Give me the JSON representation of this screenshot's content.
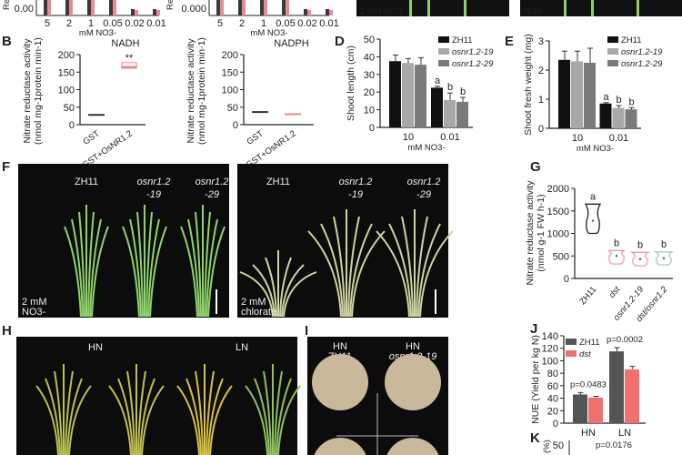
{
  "panel_labels": [
    "B",
    "D",
    "E",
    "F",
    "G",
    "H",
    "I",
    "J",
    "K"
  ],
  "top_photos": {
    "left_caption": "2 mM NO3-",
    "right_caption": "NO3-"
  },
  "chart_data": [
    {
      "id": "A-left",
      "type": "bar",
      "partial": true,
      "ylabel": "Relative",
      "yticks": [
        "0.00"
      ],
      "categories": [
        "5",
        "2",
        "1",
        "0.05",
        "0.02",
        "0.01"
      ],
      "xlabel": "mM NO3-",
      "colors": [
        "#3a3a3a",
        "#e88a93"
      ]
    },
    {
      "id": "A-right",
      "type": "bar",
      "partial": true,
      "ylabel": "Relative",
      "yticks": [
        "0.000"
      ],
      "categories": [
        "5",
        "2",
        "1",
        "0.05",
        "0.02",
        "0.01"
      ],
      "xlabel": "mM NO3-",
      "colors": [
        "#3a3a3a",
        "#e88a93"
      ]
    },
    {
      "id": "B-NADH",
      "type": "box",
      "title": "NADH",
      "ylabel": "Nitrate reductase activity",
      "ylabel2": "(nmol mg-1protein min-1)",
      "ylim": [
        0,
        200
      ],
      "yticks": [
        "0",
        "50",
        "100",
        "150",
        "200"
      ],
      "categories": [
        "GST",
        "GST+OsNR1.2"
      ],
      "values": [
        28,
        165
      ],
      "colors": [
        "#333333",
        "#e88a93"
      ],
      "annotation": "**"
    },
    {
      "id": "B-NADPH",
      "type": "box",
      "title": "NADPH",
      "ylabel": "Nitrate reductase activity",
      "ylabel2": "(nmol mg-1protein min-1)",
      "ylim": [
        0,
        200
      ],
      "yticks": [
        "0",
        "50",
        "100",
        "150",
        "200"
      ],
      "categories": [
        "GST",
        "GST+OsNR1.2"
      ],
      "values": [
        36,
        30
      ],
      "colors": [
        "#333333",
        "#e88a93"
      ]
    },
    {
      "id": "D",
      "type": "bar",
      "ylabel": "Shoot length (cm)",
      "xlabel": "mM NO3-",
      "ylim": [
        0,
        50
      ],
      "yticks": [
        "0",
        "10",
        "20",
        "30",
        "40",
        "50"
      ],
      "categories": [
        "10",
        "0.01"
      ],
      "series": [
        {
          "name": "ZH11",
          "values": [
            37.5,
            22.5
          ],
          "err": [
            3.5,
            0.8
          ],
          "color": "#111111"
        },
        {
          "name": "osnr1.2-19",
          "values": [
            36.5,
            15.5
          ],
          "err": [
            2.5,
            4
          ],
          "color": "#a8a8a8"
        },
        {
          "name": "osnr1.2-29",
          "values": [
            35.5,
            14.5
          ],
          "err": [
            4,
            2.5
          ],
          "color": "#7a7a7a"
        }
      ],
      "letters": [
        [
          "",
          ""
        ],
        [
          "a",
          "b"
        ],
        [
          "b"
        ]
      ],
      "group_letters": [
        "a",
        "b",
        "b"
      ]
    },
    {
      "id": "E",
      "type": "bar",
      "ylabel": "Shoot fresh weight (mg)",
      "xlabel": "mM NO3-",
      "ylim": [
        0,
        3
      ],
      "yticks": [
        "0",
        "1",
        "2",
        "3"
      ],
      "categories": [
        "10",
        "0.01"
      ],
      "series": [
        {
          "name": "ZH11",
          "values": [
            2.35,
            0.85
          ],
          "err": [
            0.3,
            0.03
          ],
          "color": "#111111"
        },
        {
          "name": "osnr1.2-19",
          "values": [
            2.3,
            0.7
          ],
          "err": [
            0.35,
            0.08
          ],
          "color": "#a8a8a8"
        },
        {
          "name": "osnr1.2-29",
          "values": [
            2.25,
            0.65
          ],
          "err": [
            0.5,
            0.06
          ],
          "color": "#7a7a7a"
        }
      ],
      "group_letters": [
        "a",
        "b",
        "b"
      ]
    },
    {
      "id": "G",
      "type": "violin",
      "ylabel": "Nitrate reductase activity",
      "ylabel2": "(nmol g-1 FW h-1)",
      "ylim": [
        0,
        2000
      ],
      "yticks": [
        "0",
        "500",
        "1000",
        "1500",
        "2000"
      ],
      "categories": [
        "ZH11",
        "dst",
        "osnr1.2-19",
        "dst/osnr1.2"
      ],
      "median": [
        1280,
        500,
        430,
        450
      ],
      "min": [
        1000,
        320,
        280,
        300
      ],
      "max": [
        1650,
        620,
        580,
        590
      ],
      "letters": [
        "a",
        "b",
        "b",
        "b"
      ],
      "colors": [
        "#222222",
        "#e8a0b0",
        "#e8a0b0",
        "#a8c8cc"
      ]
    },
    {
      "id": "J",
      "type": "bar",
      "ylabel": "NUE (Yield per kg N)",
      "ylim": [
        0,
        140
      ],
      "yticks": [
        "0",
        "20",
        "40",
        "60",
        "80",
        "100",
        "120",
        "140"
      ],
      "categories": [
        "HN",
        "LN"
      ],
      "series": [
        {
          "name": "ZH11",
          "values": [
            46,
            115
          ],
          "err": [
            3,
            6
          ],
          "color": "#555555"
        },
        {
          "name": "dst",
          "values": [
            41,
            86
          ],
          "err": [
            2,
            5
          ],
          "color": "#f07070"
        }
      ],
      "pvalues": [
        "p=0.0483",
        "p=0.0002"
      ]
    },
    {
      "id": "K",
      "type": "bar",
      "partial": true,
      "ylabel": "(%)",
      "yticks": [
        "50"
      ],
      "pvalues": [
        "p=0.0176"
      ]
    }
  ],
  "photo_F": {
    "left_labels": [
      "ZH11",
      "osnr1.2\n-19",
      "osnr1.2\n-29"
    ],
    "left_caption": [
      "2 mM",
      "NO3-"
    ],
    "right_labels": [
      "ZH11",
      "osnr1.2\n-19",
      "osnr1.2\n-29"
    ],
    "right_caption": [
      "2 mM",
      "chlorate"
    ]
  },
  "photo_H": {
    "labels": [
      "HN",
      "LN"
    ]
  },
  "photo_I": {
    "labels": [
      "HN\nZH11",
      "HN\nosnr1.2-19"
    ]
  }
}
